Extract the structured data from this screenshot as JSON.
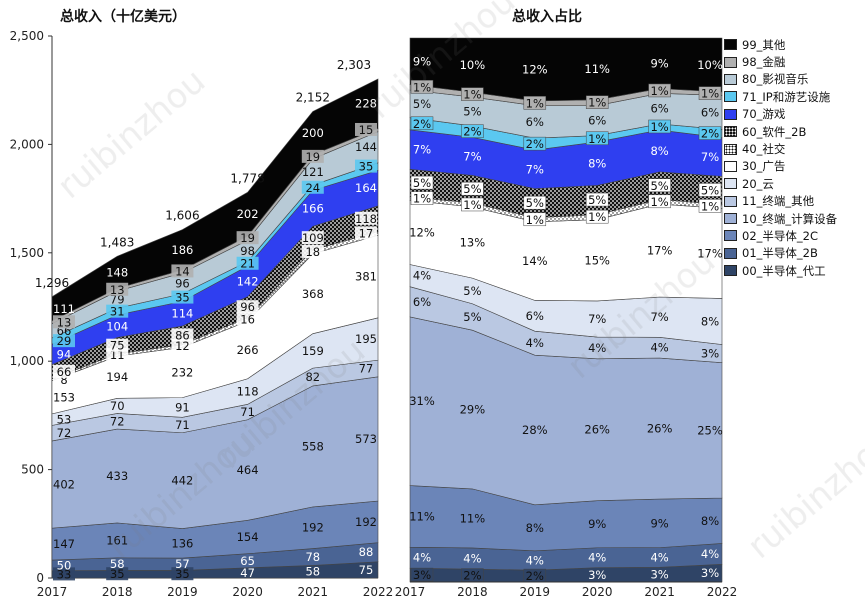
{
  "chart_data": [
    {
      "type": "area",
      "stacked": true,
      "title": "总收入（十亿美元）",
      "x": [
        "2017",
        "2018",
        "2019",
        "2020",
        "2021",
        "2022"
      ],
      "ylim": [
        0,
        2500
      ],
      "yticks": [
        "0",
        "500",
        "1,000",
        "1,500",
        "2,000",
        "2,500"
      ],
      "totals": [
        "1,296",
        "1,483",
        "1,606",
        "1,778",
        "2,152",
        "2,303"
      ],
      "series": [
        {
          "name": "00_半导体_代工",
          "color": "#2f4466",
          "values": [
            33,
            35,
            35,
            47,
            58,
            75
          ]
        },
        {
          "name": "01_半导体_2B",
          "color": "#4a6494",
          "values": [
            50,
            58,
            57,
            65,
            78,
            88
          ]
        },
        {
          "name": "02_半导体_2C",
          "color": "#6b85b8",
          "values": [
            147,
            161,
            136,
            154,
            192,
            192
          ]
        },
        {
          "name": "10_终端_计算设备",
          "color": "#9fb1d6",
          "values": [
            402,
            433,
            442,
            464,
            558,
            573
          ]
        },
        {
          "name": "11_终端_其他",
          "color": "#bac8e2",
          "values": [
            72,
            72,
            71,
            71,
            82,
            77
          ]
        },
        {
          "name": "20_云",
          "color": "#dde5f3",
          "values": [
            53,
            70,
            91,
            118,
            159,
            195
          ]
        },
        {
          "name": "30_广告",
          "color": "#ffffff",
          "values": [
            153,
            194,
            232,
            266,
            368,
            381
          ]
        },
        {
          "name": "40_社交",
          "color": "#ffffff",
          "pattern": "dots",
          "values": [
            8,
            11,
            12,
            16,
            18,
            17
          ]
        },
        {
          "name": "60_软件_2B",
          "color": "#111111",
          "pattern": "dots",
          "values": [
            66,
            75,
            86,
            96,
            109,
            118
          ]
        },
        {
          "name": "70_游戏",
          "color": "#2f3ff0",
          "values": [
            94,
            104,
            114,
            142,
            166,
            164
          ]
        },
        {
          "name": "71_IP和游艺设施",
          "color": "#5bc8f0",
          "values": [
            29,
            31,
            35,
            21,
            24,
            35
          ]
        },
        {
          "name": "80_影视音乐",
          "color": "#b8cad6",
          "values": [
            66,
            79,
            96,
            98,
            121,
            144
          ]
        },
        {
          "name": "98_金融",
          "color": "#b0b0b0",
          "values": [
            13,
            13,
            14,
            19,
            19,
            15
          ]
        },
        {
          "name": "99_其他",
          "color": "#050505",
          "values": [
            111,
            148,
            186,
            202,
            200,
            228
          ]
        }
      ]
    },
    {
      "type": "area",
      "stacked": true,
      "percent": true,
      "title": "总收入占比",
      "x": [
        "2017",
        "2018",
        "2019",
        "2020",
        "2021",
        "2022"
      ],
      "ylim": [
        0,
        100
      ],
      "series": [
        {
          "name": "00_半导体_代工",
          "labels": [
            "3%",
            "2%",
            "2%",
            "3%",
            "3%",
            "3%"
          ]
        },
        {
          "name": "01_半导体_2B",
          "labels": [
            "4%",
            "4%",
            "4%",
            "4%",
            "4%",
            "4%"
          ]
        },
        {
          "name": "02_半导体_2C",
          "labels": [
            "11%",
            "11%",
            "8%",
            "9%",
            "9%",
            "8%"
          ]
        },
        {
          "name": "10_终端_计算设备",
          "labels": [
            "31%",
            "29%",
            "28%",
            "26%",
            "26%",
            "25%"
          ]
        },
        {
          "name": "11_终端_其他",
          "labels": [
            "6%",
            "5%",
            "4%",
            "4%",
            "4%",
            "3%"
          ]
        },
        {
          "name": "20_云",
          "labels": [
            "4%",
            "5%",
            "6%",
            "7%",
            "7%",
            "8%"
          ]
        },
        {
          "name": "30_广告",
          "labels": [
            "12%",
            "13%",
            "14%",
            "15%",
            "17%",
            "17%"
          ]
        },
        {
          "name": "40_社交",
          "labels": [
            "1%",
            "1%",
            "1%",
            "1%",
            "1%",
            "1%"
          ]
        },
        {
          "name": "60_软件_2B",
          "labels": [
            "5%",
            "5%",
            "5%",
            "5%",
            "5%",
            "5%"
          ]
        },
        {
          "name": "70_游戏",
          "labels": [
            "7%",
            "7%",
            "7%",
            "8%",
            "8%",
            "7%"
          ]
        },
        {
          "name": "71_IP和游艺设施",
          "labels": [
            "2%",
            "2%",
            "2%",
            "1%",
            "1%",
            "2%"
          ]
        },
        {
          "name": "80_影视音乐",
          "labels": [
            "5%",
            "5%",
            "6%",
            "6%",
            "6%",
            "6%"
          ]
        },
        {
          "name": "98_金融",
          "labels": [
            "1%",
            "1%",
            "1%",
            "1%",
            "1%",
            "1%"
          ]
        },
        {
          "name": "99_其他",
          "labels": [
            "9%",
            "10%",
            "12%",
            "11%",
            "9%",
            "10%"
          ]
        }
      ]
    }
  ],
  "legend": [
    "99_其他",
    "98_金融",
    "80_影视音乐",
    "71_IP和游艺设施",
    "70_游戏",
    "60_软件_2B",
    "40_社交",
    "30_广告",
    "20_云",
    "11_终端_其他",
    "10_终端_计算设备",
    "02_半导体_2C",
    "01_半导体_2B",
    "00_半导体_代工"
  ],
  "watermark": "ruibinzhou"
}
